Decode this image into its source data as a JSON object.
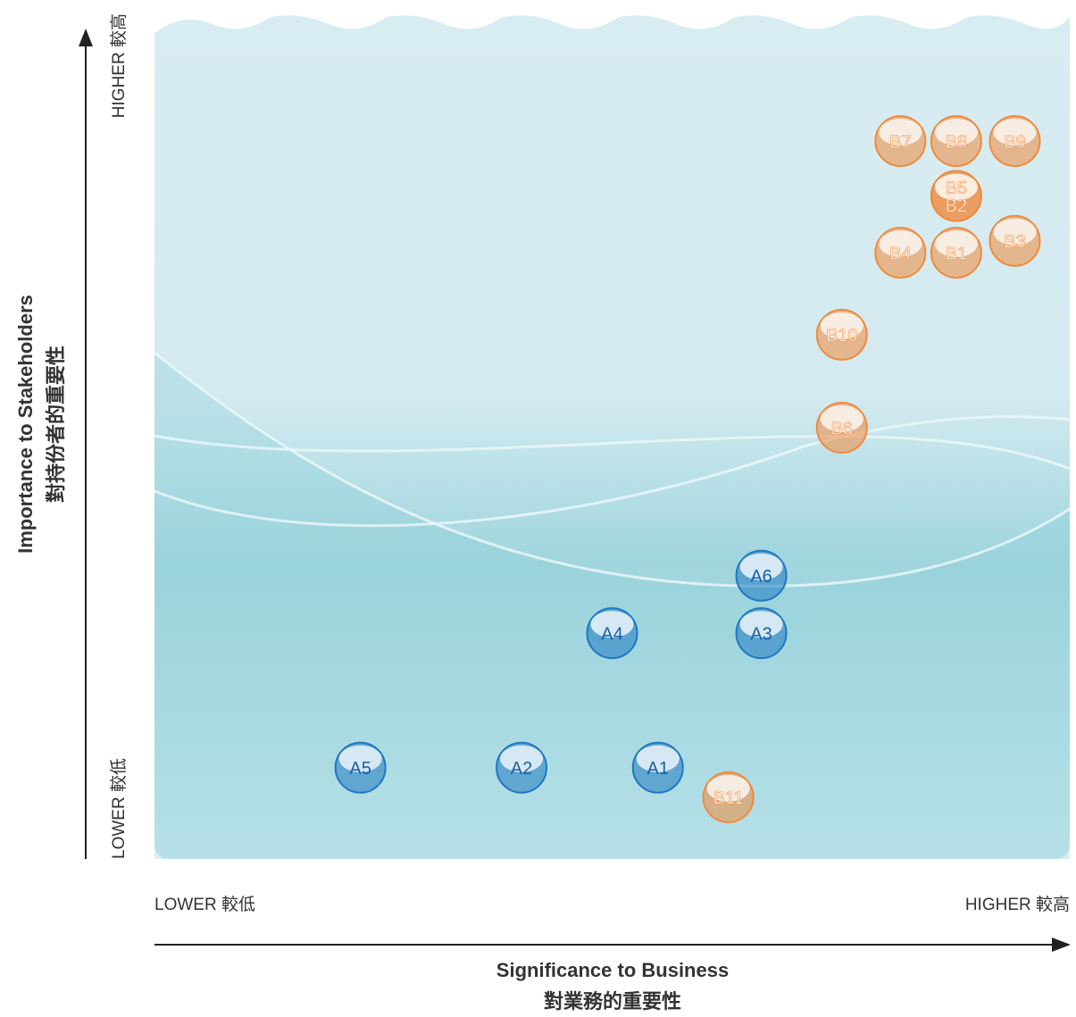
{
  "chart_data": {
    "type": "scatter",
    "xlabel": [
      "Significance to Business",
      "對業務的重要性"
    ],
    "ylabel": [
      "Importance to Stakeholders",
      "對持份者的重要性"
    ],
    "xlim": [
      0,
      100
    ],
    "ylim": [
      0,
      100
    ],
    "xticks": [
      {
        "value": 0,
        "label": "LOWER 較低"
      },
      {
        "value": 100,
        "label": "HIGHER 較高"
      }
    ],
    "yticks": [
      {
        "value": 0,
        "label": "LOWER 較低"
      },
      {
        "value": 100,
        "label": "HIGHER 較高"
      }
    ],
    "series": [
      {
        "color": "#1f78c1",
        "label_color": "#1a5fa8",
        "labels": [
          "A1",
          "A2",
          "A3",
          "A4",
          "A5",
          "A6"
        ],
        "x": [
          55.0,
          40.1,
          66.3,
          50.0,
          22.5,
          66.3
        ],
        "values": [
          10.8,
          10.8,
          26.7,
          26.7,
          10.8,
          33.5
        ]
      },
      {
        "color": "#f08a3c",
        "label_color": "#ffffff",
        "labels": [
          "B1",
          "B2",
          "B3",
          "B4",
          "B5",
          "B6",
          "B7",
          "B8",
          "B9",
          "B10",
          "B11"
        ],
        "x": [
          87.6,
          87.6,
          94.0,
          81.5,
          87.6,
          75.1,
          81.5,
          87.6,
          94.0,
          75.1,
          62.7
        ],
        "values": [
          71.7,
          78.4,
          73.1,
          71.7,
          78.4,
          51.0,
          84.9,
          84.9,
          84.9,
          62.0,
          7.3
        ]
      }
    ]
  }
}
